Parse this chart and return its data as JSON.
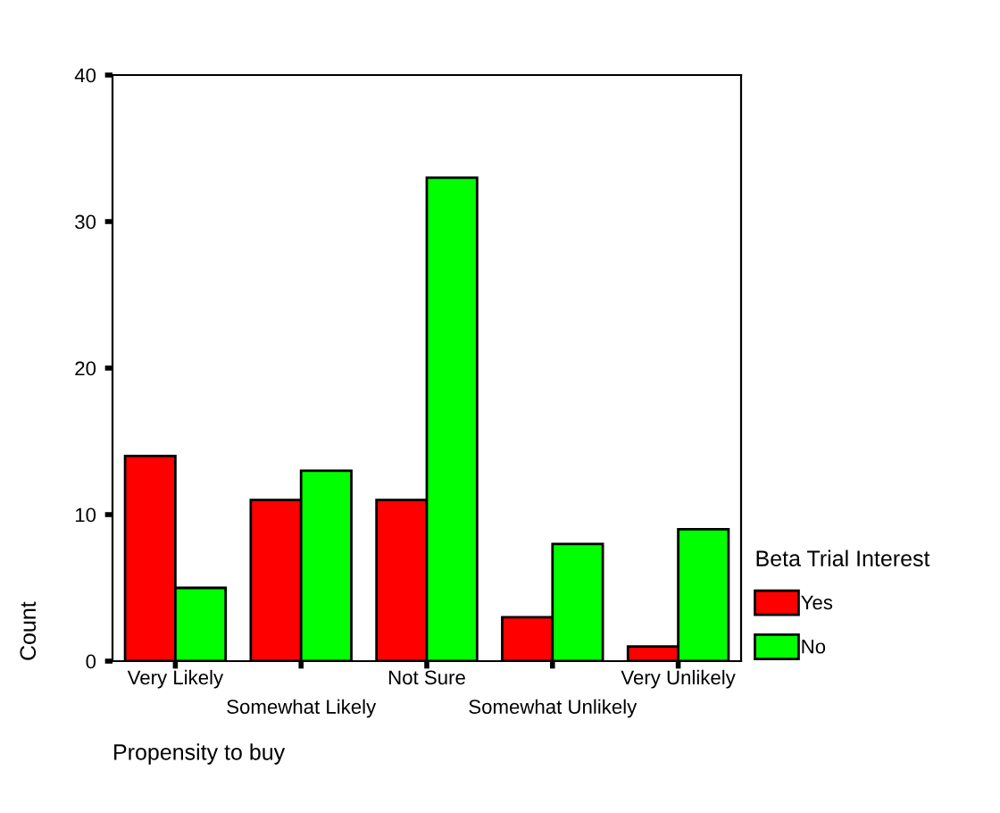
{
  "chart_data": {
    "type": "bar",
    "xlabel": "Propensity to buy",
    "ylabel": "Count",
    "legend_title": "Beta Trial Interest",
    "categories": [
      "Very Likely",
      "Somewhat Likely",
      "Not Sure",
      "Somewhat Unlikely",
      "Very Unlikely"
    ],
    "series": [
      {
        "name": "Yes",
        "color": "#ff0000",
        "values": [
          14,
          11,
          11,
          3,
          1
        ]
      },
      {
        "name": "No",
        "color": "#00ff00",
        "values": [
          5,
          13,
          33,
          8,
          9
        ]
      }
    ],
    "ylim": [
      0,
      40
    ],
    "yticks": [
      0,
      10,
      20,
      30,
      40
    ],
    "grid": false,
    "legend": "right"
  }
}
